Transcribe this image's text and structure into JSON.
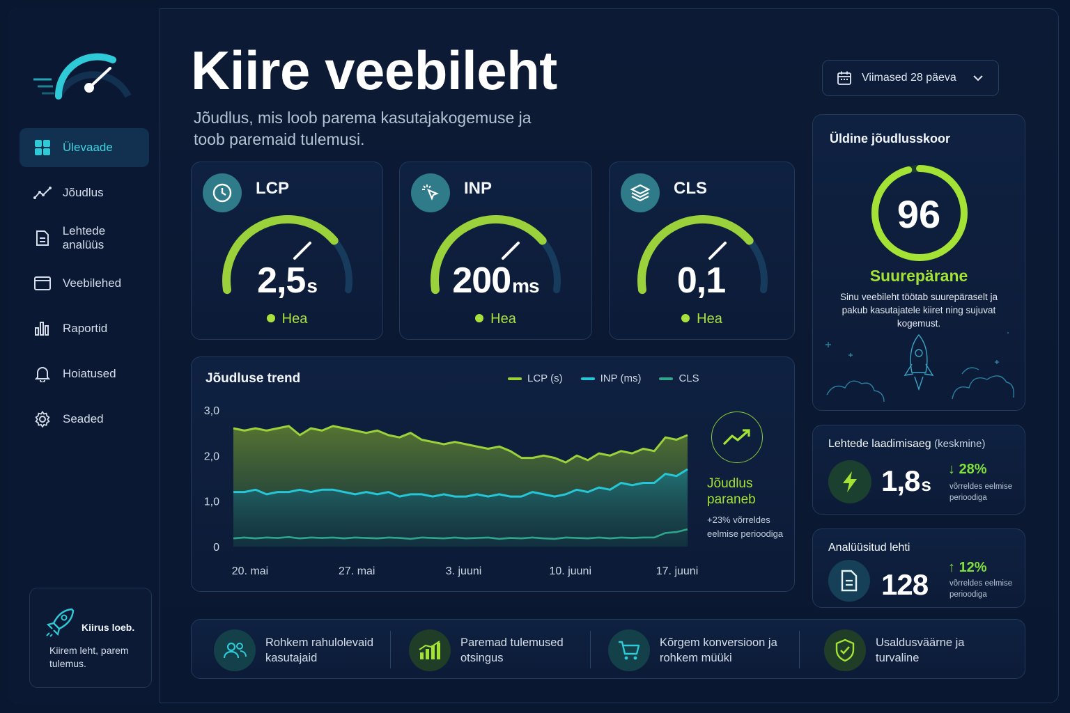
{
  "app": {
    "title": "Kiire veebileht",
    "subtitle": "Jõudlus, mis loob parema kasutajakogemuse ja toob paremaid tulemusi."
  },
  "sidebar": {
    "items": [
      {
        "label": "Ülevaade",
        "icon": "grid-icon",
        "active": true
      },
      {
        "label": "Jõudlus",
        "icon": "trend-line-icon"
      },
      {
        "label": "Lehtede analüüs",
        "icon": "document-icon"
      },
      {
        "label": "Veebilehed",
        "icon": "browser-window-icon"
      },
      {
        "label": "Raportid",
        "icon": "bar-chart-icon"
      },
      {
        "label": "Hoiatused",
        "icon": "bell-icon"
      },
      {
        "label": "Seaded",
        "icon": "gear-icon"
      }
    ],
    "promo": {
      "title": "Kiirus loeb.",
      "text": "Kiirem leht, parem tulemus."
    }
  },
  "date_filter": {
    "label": "Viimased 28 päeva"
  },
  "metrics": [
    {
      "name": "LCP",
      "value": "2,5",
      "unit": "s",
      "status": "Hea",
      "icon": "clock-icon",
      "level": 0.75
    },
    {
      "name": "INP",
      "value": "200",
      "unit": "ms",
      "status": "Hea",
      "icon": "cursor-click-icon",
      "level": 0.75
    },
    {
      "name": "CLS",
      "value": "0,1",
      "unit": "",
      "status": "Hea",
      "icon": "layers-icon",
      "level": 0.75
    }
  ],
  "score": {
    "title": "Üldine jõudlusskoor",
    "value": "96",
    "label": "Suurepärane",
    "description": "Sinu veebileht töötab suurepäraselt ja pakub kasutajatele kiiret ning sujuvat kogemust.",
    "level": 0.96
  },
  "trend": {
    "title": "Jõudluse trend",
    "summary_title": "Jõudlus paraneb",
    "summary_text": "+23% võrreldes eelmise perioodiga"
  },
  "chart_data": {
    "type": "area",
    "title": "Jõudluse trend",
    "x_ticks": [
      "20. mai",
      "27. mai",
      "3. juuni",
      "10. juuni",
      "17. juuni"
    ],
    "y_ticks": [
      "3,0",
      "2,0",
      "1,0",
      "0"
    ],
    "ylim": [
      0,
      3
    ],
    "grid": false,
    "legend_position": "top-right",
    "series": [
      {
        "name": "LCP (s)",
        "color": "#9bd13a",
        "values": [
          2.6,
          2.55,
          2.6,
          2.55,
          2.6,
          2.65,
          2.45,
          2.6,
          2.55,
          2.65,
          2.6,
          2.55,
          2.5,
          2.55,
          2.45,
          2.4,
          2.5,
          2.35,
          2.3,
          2.25,
          2.3,
          2.25,
          2.2,
          2.15,
          2.2,
          2.1,
          1.95,
          1.95,
          2.0,
          1.95,
          1.85,
          2.0,
          1.9,
          2.05,
          2.0,
          2.1,
          2.05,
          2.15,
          2.1,
          2.4,
          2.35,
          2.45
        ]
      },
      {
        "name": "INP (ms)",
        "color": "#25c6d6",
        "values": [
          1.2,
          1.2,
          1.25,
          1.15,
          1.2,
          1.2,
          1.25,
          1.2,
          1.25,
          1.25,
          1.2,
          1.15,
          1.2,
          1.15,
          1.2,
          1.1,
          1.15,
          1.15,
          1.1,
          1.15,
          1.1,
          1.1,
          1.15,
          1.1,
          1.15,
          1.1,
          1.1,
          1.2,
          1.15,
          1.1,
          1.15,
          1.25,
          1.2,
          1.3,
          1.25,
          1.4,
          1.35,
          1.4,
          1.4,
          1.6,
          1.55,
          1.7
        ]
      },
      {
        "name": "CLS",
        "color": "#2fa58a",
        "values": [
          0.18,
          0.2,
          0.18,
          0.2,
          0.19,
          0.21,
          0.18,
          0.2,
          0.19,
          0.2,
          0.18,
          0.2,
          0.19,
          0.18,
          0.2,
          0.19,
          0.17,
          0.2,
          0.19,
          0.18,
          0.2,
          0.18,
          0.19,
          0.2,
          0.17,
          0.19,
          0.18,
          0.2,
          0.18,
          0.17,
          0.2,
          0.19,
          0.18,
          0.2,
          0.18,
          0.2,
          0.19,
          0.2,
          0.2,
          0.3,
          0.32,
          0.38
        ]
      }
    ]
  },
  "stats": {
    "load_time": {
      "title": "Lehtede laadimisaeg",
      "title_suffix": "(keskmine)",
      "value": "1,8",
      "unit": "s",
      "delta": "28%",
      "direction": "down",
      "note": "võrreldes eelmise perioodiga",
      "icon": "bolt-icon"
    },
    "pages": {
      "title": "Analüüsitud lehti",
      "value": "128",
      "delta": "12%",
      "direction": "up",
      "note": "võrreldes eelmise perioodiga",
      "icon": "document-icon"
    }
  },
  "benefits": [
    {
      "text": "Rohkem rahulolevaid kasutajaid",
      "icon": "users-icon"
    },
    {
      "text": "Paremad tulemused otsingus",
      "icon": "growth-chart-icon"
    },
    {
      "text": "Kõrgem konversioon ja rohkem müüki",
      "icon": "cart-icon"
    },
    {
      "text": "Usaldusväärne ja turvaline",
      "icon": "shield-check-icon"
    }
  ],
  "colors": {
    "accent_cyan": "#2ecad8",
    "accent_green": "#a4e236",
    "background": "#0a1730"
  }
}
